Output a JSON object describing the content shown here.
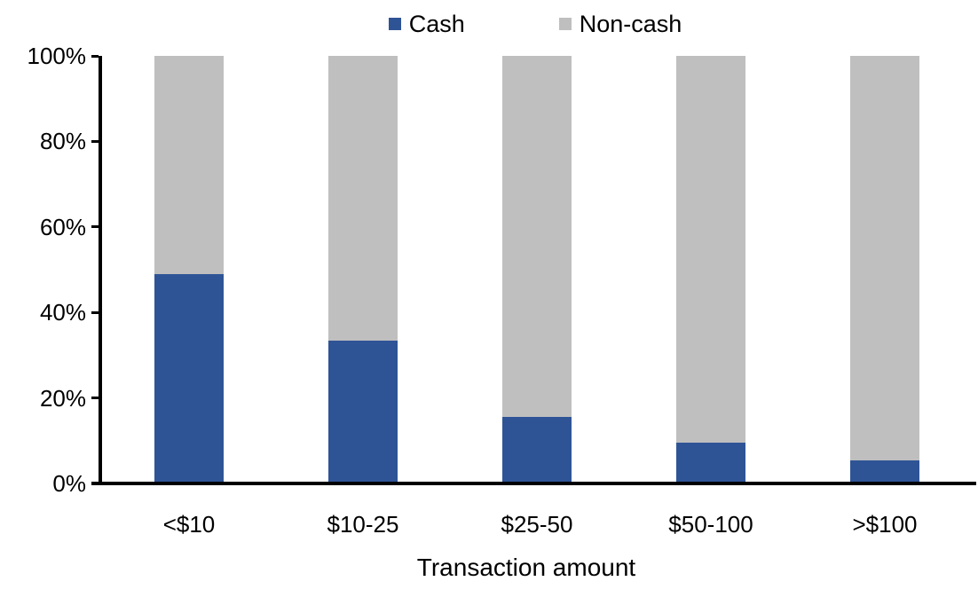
{
  "chart_data": {
    "type": "bar",
    "variant": "stacked-100",
    "title": "",
    "xlabel": "Transaction amount",
    "ylabel": "",
    "categories": [
      "<$10",
      "$10-25",
      "$25-50",
      "$50-100",
      ">$100"
    ],
    "series": [
      {
        "name": "Cash",
        "color": "#2F5496",
        "values": [
          49,
          33.5,
          15.5,
          9.5,
          5.5
        ]
      },
      {
        "name": "Non-cash",
        "color": "#BFBFBF",
        "values": [
          51,
          66.5,
          84.5,
          90.5,
          94.5
        ]
      }
    ],
    "ylim": [
      0,
      100
    ],
    "yticks": [
      100,
      80,
      60,
      40,
      20,
      0
    ],
    "ytick_labels": [
      "100%",
      "80%",
      "60%",
      "40%",
      "20%",
      "0%"
    ],
    "unit": "%",
    "grid": false,
    "legend_position": "top-center",
    "axis_color": "#000000",
    "background_color": "#FFFFFF"
  }
}
